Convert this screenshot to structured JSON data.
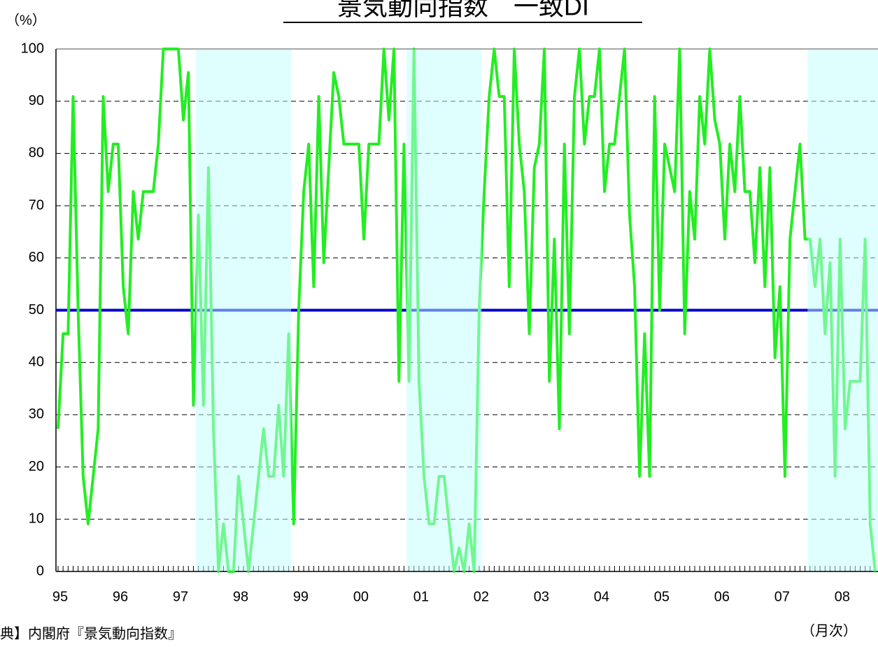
{
  "chart_data": {
    "type": "line",
    "title": "景気動向指数　一致DI",
    "y_unit": "（%）",
    "x_unit": "（月次）",
    "source": "典】内閣府『景気動向指数』",
    "categories": [
      "95",
      null,
      null,
      null,
      null,
      null,
      null,
      null,
      null,
      null,
      null,
      null,
      "96",
      null,
      null,
      null,
      null,
      null,
      null,
      null,
      null,
      null,
      null,
      null,
      "97",
      null,
      null,
      null,
      null,
      null,
      null,
      null,
      null,
      null,
      null,
      null,
      "98",
      null,
      null,
      null,
      null,
      null,
      null,
      null,
      null,
      null,
      null,
      null,
      "99",
      null,
      null,
      null,
      null,
      null,
      null,
      null,
      null,
      null,
      null,
      null,
      "00",
      null,
      null,
      null,
      null,
      null,
      null,
      null,
      null,
      null,
      null,
      null,
      "01",
      null,
      null,
      null,
      null,
      null,
      null,
      null,
      null,
      null,
      null,
      null,
      "02",
      null,
      null,
      null,
      null,
      null,
      null,
      null,
      null,
      null,
      null,
      null,
      "03",
      null,
      null,
      null,
      null,
      null,
      null,
      null,
      null,
      null,
      null,
      null,
      "04",
      null,
      null,
      null,
      null,
      null,
      null,
      null,
      null,
      null,
      null,
      null,
      "05",
      null,
      null,
      null,
      null,
      null,
      null,
      null,
      null,
      null,
      null,
      null,
      "06",
      null,
      null,
      null,
      null,
      null,
      null,
      null,
      null,
      null,
      null,
      null,
      "07",
      null,
      null,
      null,
      null,
      null,
      null,
      null,
      null,
      null,
      null,
      null,
      "08",
      null,
      null,
      null,
      null,
      null,
      null,
      null
    ],
    "series": [
      {
        "color": "#22ee22",
        "values": [
          27.3,
          45.5,
          45.5,
          90.9,
          50,
          18.2,
          9.1,
          18.2,
          27.3,
          90.9,
          72.7,
          81.8,
          81.8,
          54.5,
          45.5,
          72.7,
          63.6,
          72.7,
          72.7,
          72.7,
          81.8,
          100,
          100,
          100,
          100,
          86.4,
          95.5,
          31.8,
          68.2,
          31.8,
          77.3,
          27.3,
          0,
          9.1,
          0,
          0,
          18.2,
          9.1,
          0,
          9.1,
          18.2,
          27.3,
          18.2,
          18.2,
          31.8,
          18.2,
          45.5,
          9.1,
          50,
          72.7,
          81.8,
          54.5,
          90.9,
          59.1,
          77.3,
          95.5,
          90.9,
          81.8,
          81.8,
          81.8,
          81.8,
          63.6,
          81.8,
          81.8,
          81.8,
          100,
          86.4,
          100,
          36.4,
          81.8,
          36.4,
          100,
          36.4,
          18.2,
          9.1,
          9.1,
          18.2,
          18.2,
          9.1,
          0,
          4.5,
          0,
          9.1,
          0,
          50,
          72.7,
          90.9,
          100,
          90.9,
          90.9,
          54.5,
          100,
          81.8,
          72.7,
          45.5,
          77.3,
          81.8,
          100,
          36.4,
          63.6,
          27.3,
          81.8,
          45.5,
          90.9,
          100,
          81.8,
          90.9,
          90.9,
          100,
          72.7,
          81.8,
          81.8,
          90.9,
          100,
          68.2,
          54.5,
          18.2,
          45.5,
          18.2,
          90.9,
          50,
          81.8,
          77.3,
          72.7,
          100,
          45.5,
          72.7,
          63.6,
          90.9,
          81.8,
          100,
          86.4,
          81.8,
          63.6,
          81.8,
          72.7,
          90.9,
          72.7,
          72.7,
          59.1,
          77.3,
          54.5,
          77.3,
          40.9,
          54.5,
          18.2,
          63.6,
          72.7,
          81.8,
          63.6,
          63.6,
          54.5,
          63.6,
          45.5,
          59.1,
          18.2,
          63.6,
          27.3,
          36.4,
          36.4,
          36.4,
          63.6,
          9.1,
          0
        ]
      }
    ],
    "reference_line": {
      "value": 50,
      "color": "#0000cc"
    },
    "shaded_periods": [
      [
        28,
        46
      ],
      [
        70,
        84
      ],
      [
        150,
        163
      ]
    ],
    "shade_color": "#c0ffff",
    "ylim": [
      0,
      100
    ],
    "yticks": [
      0,
      10,
      20,
      30,
      40,
      50,
      60,
      70,
      80,
      90,
      100
    ],
    "grid": true
  }
}
